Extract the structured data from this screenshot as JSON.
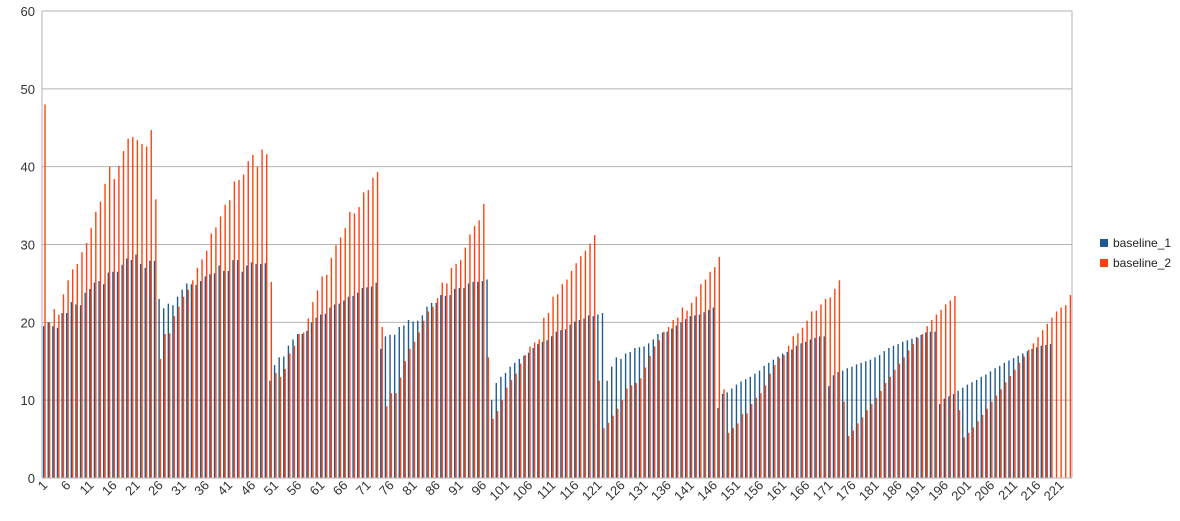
{
  "chart_data": {
    "type": "bar",
    "ylim": [
      0,
      60
    ],
    "yticks": [
      0,
      10,
      20,
      30,
      40,
      50,
      60
    ],
    "grid": true,
    "legend_position": "right",
    "x_label_every": 5,
    "series": [
      {
        "name": "baseline_1",
        "color": "#1f5b8c",
        "values": [
          19.5,
          20.0,
          19.5,
          19.3,
          21.2,
          21.2,
          22.6,
          22.3,
          22.2,
          23.8,
          24.3,
          25.1,
          25.3,
          24.9,
          26.4,
          26.5,
          26.5,
          27.4,
          28.2,
          28.0,
          28.7,
          27.5,
          27.0,
          27.9,
          27.9,
          23.0,
          21.8,
          22.4,
          22.2,
          23.3,
          24.2,
          25.0,
          24.9,
          24.8,
          25.3,
          25.9,
          26.2,
          26.3,
          27.3,
          26.6,
          26.6,
          28.0,
          28.0,
          26.5,
          27.3,
          27.7,
          27.5,
          27.5,
          27.6,
          12.5,
          14.5,
          15.5,
          15.6,
          17.0,
          17.8,
          18.5,
          18.5,
          18.9,
          20.0,
          20.6,
          21.0,
          21.1,
          21.9,
          22.3,
          22.4,
          22.8,
          23.3,
          23.4,
          23.8,
          24.4,
          24.5,
          24.6,
          25.1,
          16.6,
          18.2,
          18.4,
          18.4,
          19.4,
          19.6,
          20.3,
          20.1,
          20.2,
          20.9,
          22.0,
          22.5,
          22.5,
          23.5,
          23.4,
          23.5,
          24.3,
          24.4,
          24.4,
          25.0,
          25.2,
          25.2,
          25.3,
          25.5,
          10.0,
          12.2,
          13.0,
          13.5,
          14.3,
          14.8,
          15.3,
          15.7,
          16.1,
          16.7,
          17.2,
          17.5,
          17.7,
          18.2,
          18.8,
          19.0,
          19.1,
          19.7,
          20.1,
          20.3,
          20.5,
          20.9,
          20.8,
          21.0,
          21.2,
          12.5,
          14.3,
          15.5,
          15.3,
          16.0,
          16.2,
          16.7,
          16.8,
          16.9,
          17.3,
          17.8,
          18.5,
          18.7,
          18.8,
          19.2,
          19.6,
          20.0,
          20.4,
          20.8,
          20.9,
          21.0,
          21.3,
          21.6,
          21.9,
          9.0,
          10.8,
          11.0,
          11.5,
          12.0,
          12.4,
          12.7,
          13.0,
          13.4,
          13.8,
          14.4,
          14.8,
          15.2,
          15.6,
          16.0,
          16.2,
          16.5,
          17.0,
          17.3,
          17.5,
          17.8,
          18.0,
          18.2,
          18.2,
          11.8,
          13.2,
          13.6,
          13.8,
          14.1,
          14.3,
          14.6,
          14.8,
          15.0,
          15.2,
          15.5,
          15.8,
          16.3,
          16.7,
          17.0,
          17.2,
          17.5,
          17.7,
          17.9,
          18.1,
          18.4,
          18.7,
          18.8,
          18.8,
          9.5,
          10.2,
          10.5,
          10.8,
          11.2,
          11.6,
          12.0,
          12.3,
          12.6,
          13.0,
          13.3,
          13.7,
          14.1,
          14.4,
          14.8,
          15.1,
          15.4,
          15.7,
          16.0,
          16.3,
          16.6,
          16.8,
          17.0,
          17.1,
          17.2
        ]
      },
      {
        "name": "baseline_2",
        "color": "#ff420e",
        "values": [
          48.0,
          20.0,
          21.7,
          21.0,
          23.6,
          25.4,
          26.8,
          27.5,
          29.0,
          30.2,
          32.1,
          34.2,
          35.5,
          37.8,
          40.0,
          38.4,
          40.1,
          42.0,
          43.6,
          43.8,
          43.4,
          42.9,
          42.6,
          44.7,
          35.8,
          15.3,
          18.5,
          18.6,
          20.8,
          22.0,
          23.3,
          24.2,
          25.4,
          27.0,
          28.1,
          29.2,
          31.4,
          32.2,
          33.6,
          35.1,
          35.7,
          38.1,
          38.3,
          39.0,
          40.7,
          41.5,
          40.0,
          42.2,
          41.6,
          25.2,
          13.5,
          13.0,
          14.0,
          16.0,
          17.0,
          18.5,
          18.7,
          20.5,
          22.6,
          24.1,
          25.9,
          26.1,
          28.3,
          29.9,
          30.9,
          32.1,
          34.2,
          34.0,
          34.8,
          36.7,
          37.0,
          38.6,
          39.3,
          19.4,
          9.2,
          10.9,
          10.9,
          12.9,
          15.0,
          16.6,
          17.5,
          18.7,
          20.2,
          21.4,
          22.0,
          23.1,
          25.1,
          25.0,
          27.0,
          27.5,
          28.0,
          29.6,
          31.3,
          32.4,
          33.1,
          35.2,
          15.5,
          7.6,
          8.6,
          10.0,
          11.6,
          12.6,
          13.4,
          14.7,
          15.8,
          16.9,
          17.4,
          17.8,
          20.6,
          21.2,
          23.3,
          23.6,
          24.9,
          25.5,
          26.6,
          27.6,
          28.5,
          29.2,
          30.1,
          31.2,
          12.5,
          6.4,
          7.1,
          8.0,
          8.9,
          10.0,
          11.5,
          11.9,
          12.2,
          12.8,
          14.2,
          15.7,
          16.9,
          17.7,
          18.8,
          19.4,
          20.3,
          20.6,
          21.9,
          21.5,
          22.5,
          23.3,
          24.9,
          25.5,
          26.5,
          27.1,
          28.4,
          11.4,
          5.8,
          6.4,
          7.0,
          8.2,
          8.3,
          9.5,
          10.3,
          10.9,
          11.9,
          13.4,
          14.5,
          15.4,
          15.8,
          17.0,
          18.2,
          18.6,
          19.3,
          20.2,
          21.4,
          21.5,
          22.3,
          23.0,
          23.2,
          24.3,
          25.4,
          9.8,
          5.4,
          6.1,
          7.0,
          7.8,
          8.7,
          9.5,
          10.3,
          11.2,
          12.2,
          13.0,
          13.9,
          14.7,
          15.5,
          16.4,
          17.2,
          18.0,
          18.5,
          19.5,
          20.3,
          21.0,
          21.6,
          22.3,
          22.8,
          23.4,
          8.7,
          5.2,
          5.8,
          6.5,
          7.3,
          8.1,
          8.9,
          9.8,
          10.6,
          11.4,
          12.3,
          13.1,
          13.9,
          14.8,
          15.6,
          16.5,
          17.3,
          18.1,
          19.0,
          19.8,
          20.6,
          21.4,
          21.9,
          22.2,
          23.5
        ]
      }
    ]
  }
}
